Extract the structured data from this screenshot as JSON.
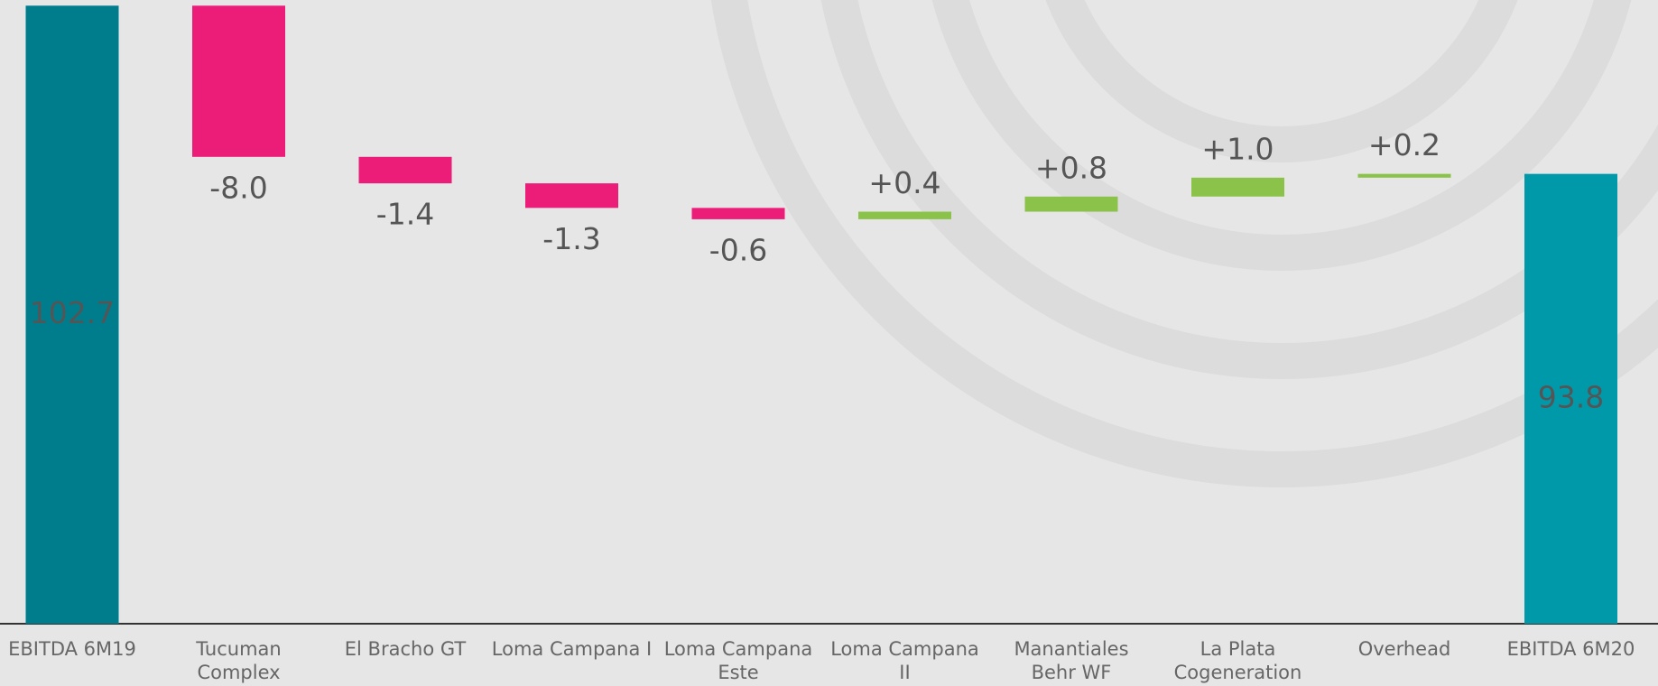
{
  "chart_data": {
    "type": "waterfall",
    "categories": [
      "EBITDA 6M19",
      "Tucuman Complex",
      "El Bracho GT",
      "Loma Campana I",
      "Loma Campana Este",
      "Loma Campana II",
      "Manantiales Behr WF",
      "La Plata Cogeneration",
      "Overhead",
      "EBITDA 6M20"
    ],
    "values": [
      102.7,
      -8.0,
      -1.4,
      -1.3,
      -0.6,
      0.4,
      0.8,
      1.0,
      0.2,
      93.8
    ],
    "value_labels": [
      "102.7",
      "-8.0",
      "-1.4",
      "-1.3",
      "-0.6",
      "+0.4",
      "+0.8",
      "+1.0",
      "+0.2",
      "93.8"
    ],
    "colors": [
      "#007d8c",
      "#ec1c79",
      "#ec1c79",
      "#ec1c79",
      "#ec1c79",
      "#8bc34a",
      "#8bc34a",
      "#8bc34a",
      "#8bc34a",
      "#0099aa"
    ],
    "total_indices": [
      0,
      9
    ],
    "ylim": [
      70,
      103
    ]
  }
}
